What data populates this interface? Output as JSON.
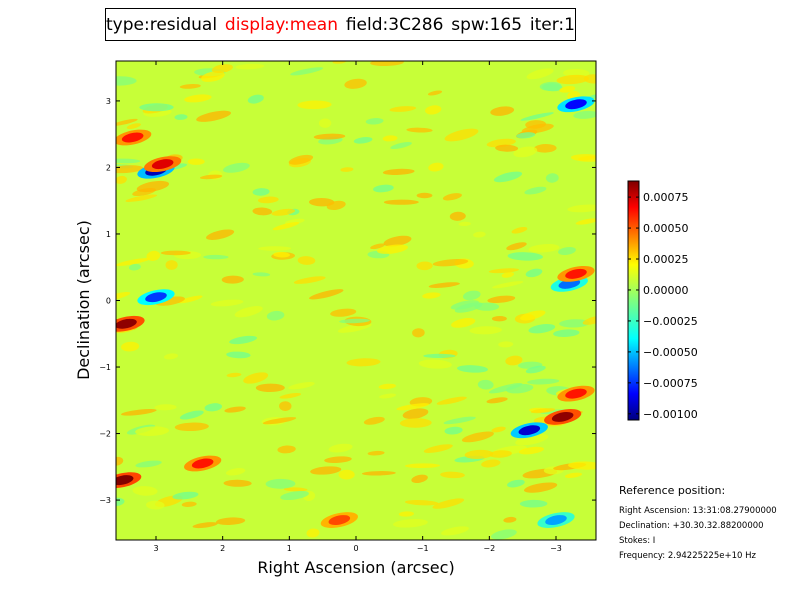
{
  "title": {
    "parts": [
      {
        "text": "type:residual",
        "color": "#000000"
      },
      {
        "text": "display:mean",
        "color": "#ff0000"
      },
      {
        "text": "field:3C286",
        "color": "#000000"
      },
      {
        "text": "spw:165",
        "color": "#000000"
      },
      {
        "text": "iter:1",
        "color": "#000000"
      }
    ]
  },
  "chart_data": {
    "type": "heatmap",
    "xlabel": "Right Ascension (arcsec)",
    "ylabel": "Declination (arcsec)",
    "xlim": [
      3.6,
      -3.6
    ],
    "ylim": [
      -3.6,
      3.6
    ],
    "xticks": [
      3,
      2,
      1,
      0,
      -1,
      -2,
      -3
    ],
    "xtick_labels": [
      "3",
      "2",
      "1",
      "0",
      "−1",
      "−2",
      "−3"
    ],
    "yticks": [
      3,
      2,
      1,
      0,
      -1,
      -2,
      -3
    ],
    "ytick_labels": [
      "3",
      "2",
      "1",
      "0",
      "−1",
      "−2",
      "−3"
    ],
    "colormap": "jet",
    "colorbar": {
      "min": -0.00105,
      "max": 0.00088,
      "ticks": [
        0.00075,
        0.0005,
        0.00025,
        0.0,
        -0.00025,
        -0.0005,
        -0.00075,
        -0.001
      ],
      "tick_labels": [
        "0.00075",
        "0.00050",
        "0.00025",
        "0.00000",
        "−0.00025",
        "−0.00050",
        "−0.00075",
        "−0.00100"
      ]
    },
    "background_level": 5e-05,
    "features": [
      {
        "x": 3.0,
        "y": 1.95,
        "value": -0.00095
      },
      {
        "x": 2.9,
        "y": 2.05,
        "value": 0.0007
      },
      {
        "x": 3.35,
        "y": 2.45,
        "value": 0.0006
      },
      {
        "x": 3.45,
        "y": -0.35,
        "value": 0.00085
      },
      {
        "x": 3.0,
        "y": 0.05,
        "value": -0.0007
      },
      {
        "x": 3.5,
        "y": -2.7,
        "value": 0.00088
      },
      {
        "x": 2.3,
        "y": -2.45,
        "value": 0.0006
      },
      {
        "x": -3.1,
        "y": -1.75,
        "value": 0.00085
      },
      {
        "x": -2.6,
        "y": -1.95,
        "value": -0.0009
      },
      {
        "x": -3.3,
        "y": 2.95,
        "value": -0.0008
      },
      {
        "x": -3.2,
        "y": 0.25,
        "value": -0.0006
      },
      {
        "x": -3.3,
        "y": 0.4,
        "value": 0.0006
      },
      {
        "x": -3.3,
        "y": -1.4,
        "value": 0.0006
      },
      {
        "x": -3.0,
        "y": -3.3,
        "value": -0.0005
      },
      {
        "x": 0.25,
        "y": -3.3,
        "value": 0.0005
      }
    ]
  },
  "reference": {
    "heading": "Reference position:",
    "lines": [
      "Right Ascension: 13:31:08.27900000",
      "Declination: +30.30.32.88200000",
      "Stokes: I",
      "Frequency: 2.94225225e+10 Hz"
    ]
  }
}
